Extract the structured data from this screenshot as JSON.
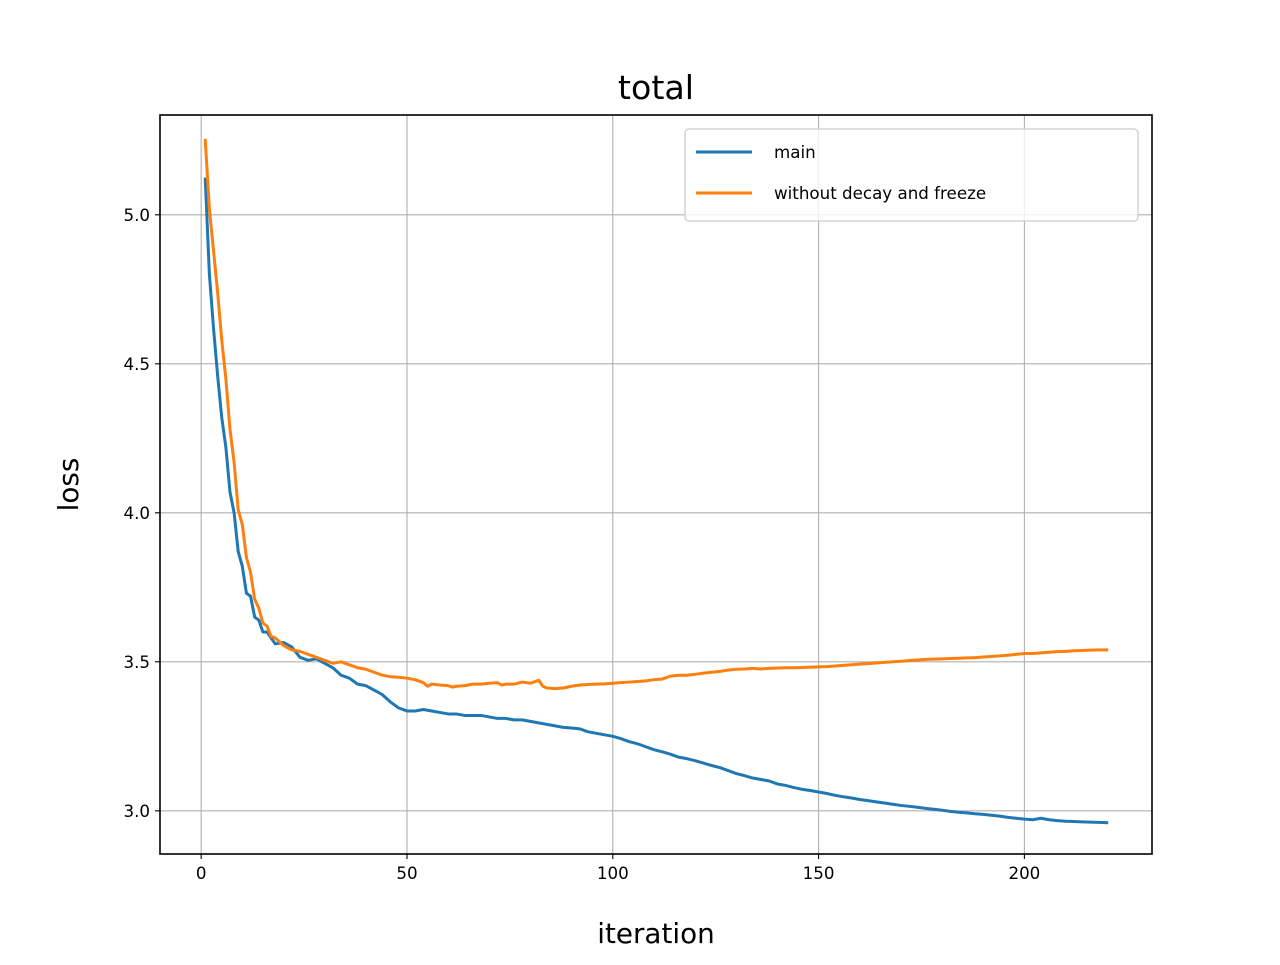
{
  "chart_data": {
    "type": "line",
    "title": "total",
    "xlabel": "iteration",
    "ylabel": "loss",
    "xlim": [
      -10,
      231
    ],
    "ylim": [
      2.855,
      5.335
    ],
    "xticks": [
      0,
      50,
      100,
      150,
      200
    ],
    "yticks": [
      3.0,
      3.5,
      4.0,
      4.5,
      5.0
    ],
    "xtick_labels": [
      "0",
      "50",
      "100",
      "150",
      "200"
    ],
    "ytick_labels": [
      "3.0",
      "3.5",
      "4.0",
      "4.5",
      "5.0"
    ],
    "grid": true,
    "legend_position": "upper right",
    "series": [
      {
        "name": "main",
        "color": "#1f77b4",
        "points": [
          [
            1,
            5.12
          ],
          [
            2,
            4.8
          ],
          [
            3,
            4.62
          ],
          [
            4,
            4.46
          ],
          [
            5,
            4.32
          ],
          [
            6,
            4.22
          ],
          [
            7,
            4.07
          ],
          [
            8,
            4.0
          ],
          [
            9,
            3.87
          ],
          [
            10,
            3.82
          ],
          [
            11,
            3.73
          ],
          [
            12,
            3.72
          ],
          [
            13,
            3.65
          ],
          [
            14,
            3.64
          ],
          [
            15,
            3.6
          ],
          [
            16,
            3.6
          ],
          [
            17,
            3.58
          ],
          [
            18,
            3.56
          ],
          [
            20,
            3.565
          ],
          [
            22,
            3.55
          ],
          [
            24,
            3.515
          ],
          [
            26,
            3.505
          ],
          [
            28,
            3.51
          ],
          [
            30,
            3.495
          ],
          [
            32,
            3.48
          ],
          [
            34,
            3.455
          ],
          [
            36,
            3.445
          ],
          [
            38,
            3.425
          ],
          [
            40,
            3.42
          ],
          [
            42,
            3.405
          ],
          [
            44,
            3.39
          ],
          [
            46,
            3.365
          ],
          [
            48,
            3.345
          ],
          [
            50,
            3.335
          ],
          [
            52,
            3.335
          ],
          [
            54,
            3.34
          ],
          [
            56,
            3.335
          ],
          [
            58,
            3.33
          ],
          [
            60,
            3.325
          ],
          [
            62,
            3.325
          ],
          [
            64,
            3.32
          ],
          [
            66,
            3.32
          ],
          [
            68,
            3.32
          ],
          [
            70,
            3.315
          ],
          [
            72,
            3.31
          ],
          [
            74,
            3.31
          ],
          [
            76,
            3.305
          ],
          [
            78,
            3.305
          ],
          [
            80,
            3.3
          ],
          [
            82,
            3.295
          ],
          [
            84,
            3.29
          ],
          [
            86,
            3.285
          ],
          [
            88,
            3.28
          ],
          [
            90,
            3.278
          ],
          [
            92,
            3.275
          ],
          [
            94,
            3.265
          ],
          [
            96,
            3.26
          ],
          [
            98,
            3.255
          ],
          [
            100,
            3.25
          ],
          [
            102,
            3.242
          ],
          [
            104,
            3.232
          ],
          [
            106,
            3.225
          ],
          [
            108,
            3.215
          ],
          [
            110,
            3.205
          ],
          [
            112,
            3.198
          ],
          [
            114,
            3.19
          ],
          [
            116,
            3.18
          ],
          [
            118,
            3.175
          ],
          [
            120,
            3.168
          ],
          [
            122,
            3.16
          ],
          [
            124,
            3.152
          ],
          [
            126,
            3.145
          ],
          [
            128,
            3.135
          ],
          [
            130,
            3.125
          ],
          [
            132,
            3.118
          ],
          [
            134,
            3.11
          ],
          [
            136,
            3.105
          ],
          [
            138,
            3.1
          ],
          [
            140,
            3.09
          ],
          [
            142,
            3.085
          ],
          [
            144,
            3.078
          ],
          [
            146,
            3.072
          ],
          [
            148,
            3.068
          ],
          [
            150,
            3.063
          ],
          [
            152,
            3.058
          ],
          [
            154,
            3.052
          ],
          [
            156,
            3.047
          ],
          [
            158,
            3.043
          ],
          [
            160,
            3.038
          ],
          [
            162,
            3.034
          ],
          [
            164,
            3.03
          ],
          [
            166,
            3.026
          ],
          [
            168,
            3.022
          ],
          [
            170,
            3.018
          ],
          [
            172,
            3.015
          ],
          [
            174,
            3.012
          ],
          [
            176,
            3.008
          ],
          [
            178,
            3.005
          ],
          [
            180,
            3.002
          ],
          [
            182,
            2.998
          ],
          [
            184,
            2.995
          ],
          [
            186,
            2.993
          ],
          [
            188,
            2.99
          ],
          [
            190,
            2.988
          ],
          [
            192,
            2.985
          ],
          [
            194,
            2.982
          ],
          [
            196,
            2.978
          ],
          [
            198,
            2.975
          ],
          [
            200,
            2.972
          ],
          [
            202,
            2.97
          ],
          [
            204,
            2.975
          ],
          [
            206,
            2.97
          ],
          [
            208,
            2.967
          ],
          [
            210,
            2.965
          ],
          [
            212,
            2.964
          ],
          [
            214,
            2.963
          ],
          [
            216,
            2.962
          ],
          [
            218,
            2.961
          ],
          [
            220,
            2.96
          ]
        ]
      },
      {
        "name": "without decay and freeze",
        "color": "#ff7f0e",
        "points": [
          [
            1,
            5.25
          ],
          [
            2,
            5.02
          ],
          [
            3,
            4.88
          ],
          [
            4,
            4.74
          ],
          [
            5,
            4.58
          ],
          [
            6,
            4.45
          ],
          [
            7,
            4.28
          ],
          [
            8,
            4.17
          ],
          [
            9,
            4.01
          ],
          [
            10,
            3.96
          ],
          [
            11,
            3.85
          ],
          [
            12,
            3.8
          ],
          [
            13,
            3.71
          ],
          [
            14,
            3.68
          ],
          [
            15,
            3.63
          ],
          [
            16,
            3.62
          ],
          [
            17,
            3.585
          ],
          [
            18,
            3.58
          ],
          [
            20,
            3.555
          ],
          [
            22,
            3.54
          ],
          [
            24,
            3.535
          ],
          [
            26,
            3.525
          ],
          [
            28,
            3.515
          ],
          [
            30,
            3.505
          ],
          [
            32,
            3.495
          ],
          [
            34,
            3.5
          ],
          [
            36,
            3.49
          ],
          [
            38,
            3.48
          ],
          [
            40,
            3.475
          ],
          [
            42,
            3.465
          ],
          [
            44,
            3.455
          ],
          [
            46,
            3.45
          ],
          [
            48,
            3.448
          ],
          [
            50,
            3.445
          ],
          [
            52,
            3.44
          ],
          [
            54,
            3.43
          ],
          [
            55,
            3.418
          ],
          [
            56,
            3.425
          ],
          [
            58,
            3.422
          ],
          [
            60,
            3.42
          ],
          [
            61,
            3.415
          ],
          [
            62,
            3.418
          ],
          [
            64,
            3.42
          ],
          [
            66,
            3.425
          ],
          [
            68,
            3.425
          ],
          [
            70,
            3.428
          ],
          [
            72,
            3.43
          ],
          [
            73,
            3.422
          ],
          [
            74,
            3.425
          ],
          [
            76,
            3.425
          ],
          [
            78,
            3.432
          ],
          [
            80,
            3.428
          ],
          [
            82,
            3.438
          ],
          [
            83,
            3.418
          ],
          [
            84,
            3.412
          ],
          [
            86,
            3.41
          ],
          [
            88,
            3.412
          ],
          [
            90,
            3.418
          ],
          [
            92,
            3.422
          ],
          [
            94,
            3.424
          ],
          [
            96,
            3.425
          ],
          [
            98,
            3.426
          ],
          [
            100,
            3.428
          ],
          [
            102,
            3.43
          ],
          [
            104,
            3.432
          ],
          [
            106,
            3.434
          ],
          [
            108,
            3.436
          ],
          [
            110,
            3.44
          ],
          [
            112,
            3.442
          ],
          [
            114,
            3.452
          ],
          [
            116,
            3.455
          ],
          [
            118,
            3.455
          ],
          [
            120,
            3.458
          ],
          [
            122,
            3.462
          ],
          [
            124,
            3.465
          ],
          [
            126,
            3.468
          ],
          [
            128,
            3.472
          ],
          [
            130,
            3.475
          ],
          [
            132,
            3.476
          ],
          [
            134,
            3.478
          ],
          [
            136,
            3.476
          ],
          [
            138,
            3.478
          ],
          [
            140,
            3.479
          ],
          [
            142,
            3.48
          ],
          [
            144,
            3.48
          ],
          [
            146,
            3.481
          ],
          [
            148,
            3.482
          ],
          [
            150,
            3.483
          ],
          [
            152,
            3.484
          ],
          [
            154,
            3.486
          ],
          [
            156,
            3.488
          ],
          [
            158,
            3.49
          ],
          [
            160,
            3.492
          ],
          [
            162,
            3.494
          ],
          [
            164,
            3.496
          ],
          [
            166,
            3.498
          ],
          [
            168,
            3.5
          ],
          [
            170,
            3.502
          ],
          [
            172,
            3.504
          ],
          [
            174,
            3.506
          ],
          [
            176,
            3.508
          ],
          [
            178,
            3.509
          ],
          [
            180,
            3.51
          ],
          [
            182,
            3.511
          ],
          [
            184,
            3.512
          ],
          [
            186,
            3.513
          ],
          [
            188,
            3.514
          ],
          [
            190,
            3.516
          ],
          [
            192,
            3.518
          ],
          [
            194,
            3.52
          ],
          [
            196,
            3.522
          ],
          [
            198,
            3.525
          ],
          [
            200,
            3.528
          ],
          [
            202,
            3.528
          ],
          [
            204,
            3.53
          ],
          [
            206,
            3.532
          ],
          [
            208,
            3.534
          ],
          [
            210,
            3.535
          ],
          [
            212,
            3.537
          ],
          [
            214,
            3.538
          ],
          [
            216,
            3.539
          ],
          [
            218,
            3.54
          ],
          [
            220,
            3.54
          ]
        ]
      }
    ]
  }
}
